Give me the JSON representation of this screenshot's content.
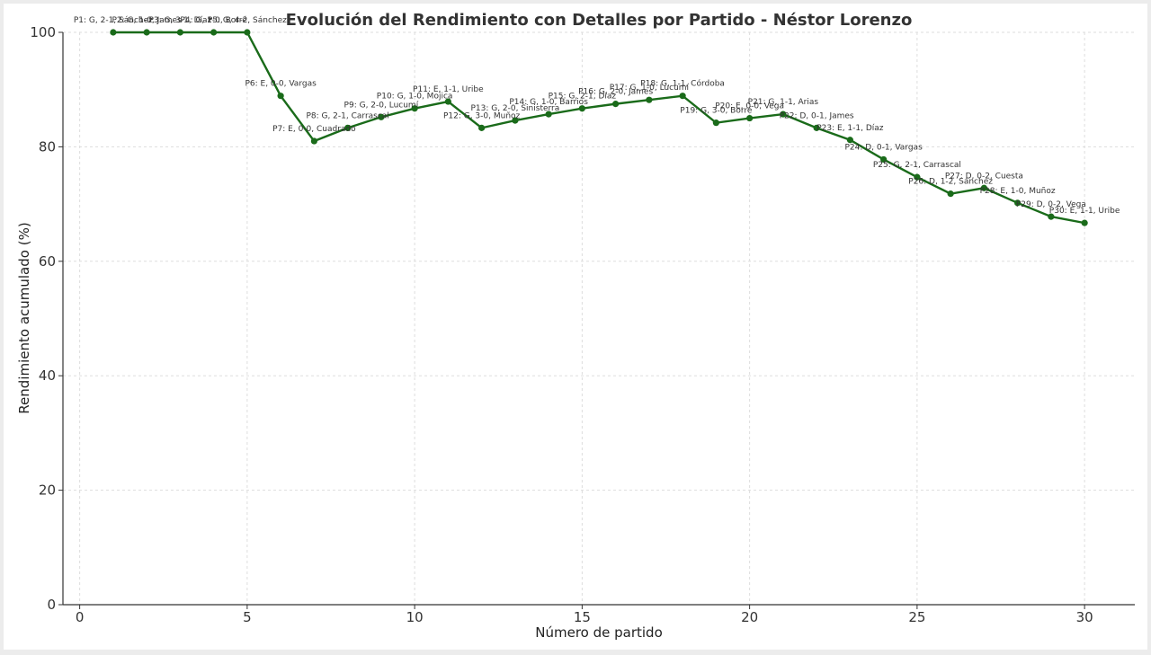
{
  "chart_data": {
    "type": "line",
    "title": "Evolución del Rendimiento con Detalles por Partido - Néstor Lorenzo",
    "xlabel": "Número de partido",
    "ylabel": "Rendimiento acumulado (%)",
    "xlim": [
      -0.5,
      31.5
    ],
    "ylim": [
      0,
      100
    ],
    "xticks": [
      0,
      5,
      10,
      15,
      20,
      25,
      30
    ],
    "yticks": [
      0,
      20,
      40,
      60,
      80,
      100
    ],
    "grid": true,
    "line_color": "#1a6b1a",
    "points": [
      {
        "x": 1,
        "y": 100.0,
        "label": "P1: G, 2-1, Sánchez"
      },
      {
        "x": 2,
        "y": 100.0,
        "label": "P2: G, 1-0, James"
      },
      {
        "x": 3,
        "y": 100.0,
        "label": "P3: G, 3-1, Díaz"
      },
      {
        "x": 4,
        "y": 100.0,
        "label": "P4: G, 1-0, Borré"
      },
      {
        "x": 5,
        "y": 100.0,
        "label": "P5: G, 4-2, Sánchez"
      },
      {
        "x": 6,
        "y": 88.9,
        "label": "P6: E, 0-0, Vargas"
      },
      {
        "x": 7,
        "y": 81.0,
        "label": "P7: E, 0-0, Cuadrado"
      },
      {
        "x": 8,
        "y": 83.3,
        "label": "P8: G, 2-1, Carrascal"
      },
      {
        "x": 9,
        "y": 85.2,
        "label": "P9: G, 2-0, Lucumí"
      },
      {
        "x": 10,
        "y": 86.7,
        "label": "P10: G, 1-0, Mojica"
      },
      {
        "x": 11,
        "y": 87.9,
        "label": "P11: E, 1-1, Uribe"
      },
      {
        "x": 12,
        "y": 83.3,
        "label": "P12: G, 3-0, Muñoz"
      },
      {
        "x": 13,
        "y": 84.6,
        "label": "P13: G, 2-0, Sinisterra"
      },
      {
        "x": 14,
        "y": 85.7,
        "label": "P14: G, 1-0, Barrios"
      },
      {
        "x": 15,
        "y": 86.7,
        "label": "P15: G, 2-1, Díaz"
      },
      {
        "x": 16,
        "y": 87.5,
        "label": "P16: G, 2-0, James"
      },
      {
        "x": 17,
        "y": 88.2,
        "label": "P17: G, 1-0, Lucumí"
      },
      {
        "x": 18,
        "y": 88.9,
        "label": "P18: G, 1-1, Córdoba"
      },
      {
        "x": 19,
        "y": 84.2,
        "label": "P19: G, 3-0, Borré"
      },
      {
        "x": 20,
        "y": 85.0,
        "label": "P20: E, 0-0, Vega"
      },
      {
        "x": 21,
        "y": 85.7,
        "label": "P21: G, 1-1, Arias"
      },
      {
        "x": 22,
        "y": 83.3,
        "label": "P22: D, 0-1, James"
      },
      {
        "x": 23,
        "y": 81.2,
        "label": "P23: E, 1-1, Díaz"
      },
      {
        "x": 24,
        "y": 77.8,
        "label": "P24: D, 0-1, Vargas"
      },
      {
        "x": 25,
        "y": 74.7,
        "label": "P25: G, 2-1, Carrascal"
      },
      {
        "x": 26,
        "y": 71.8,
        "label": "P26: D, 1-2, Sánchez"
      },
      {
        "x": 27,
        "y": 72.8,
        "label": "P27: D, 0-2, Cuesta"
      },
      {
        "x": 28,
        "y": 70.2,
        "label": "P28: E, 1-0, Muñoz"
      },
      {
        "x": 29,
        "y": 67.8,
        "label": "P29: D, 0-2, Vega"
      },
      {
        "x": 30,
        "y": 66.7,
        "label": "P30: E, 1-1, Uribe"
      }
    ]
  }
}
